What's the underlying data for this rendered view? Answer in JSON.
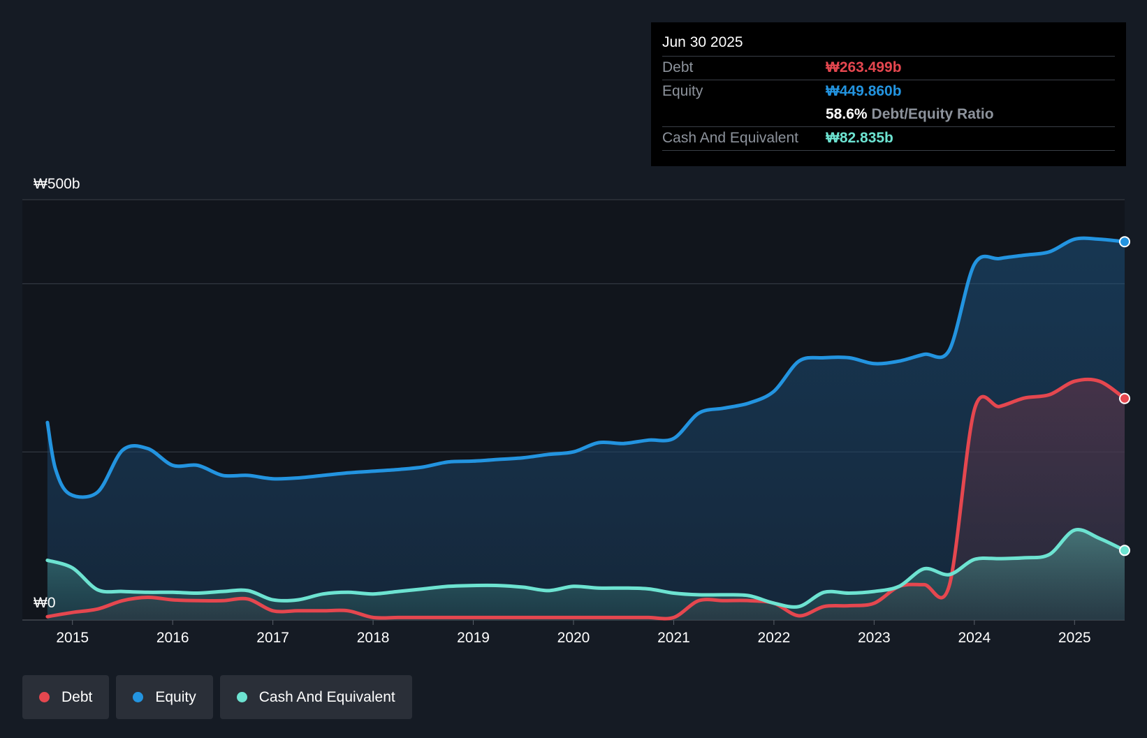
{
  "colors": {
    "debt": "#e5474f",
    "equity": "#2394e0",
    "cash": "#6de3d1",
    "background": "#151b24",
    "plot_background": "#11151c"
  },
  "tooltip": {
    "date": "Jun 30 2025",
    "debt_label": "Debt",
    "debt_value": "₩263.499b",
    "equity_label": "Equity",
    "equity_value": "₩449.860b",
    "ratio_value": "58.6%",
    "ratio_label": "Debt/Equity Ratio",
    "cash_label": "Cash And Equivalent",
    "cash_value": "₩82.835b"
  },
  "legend": [
    {
      "key": "debt",
      "label": "Debt"
    },
    {
      "key": "equity",
      "label": "Equity"
    },
    {
      "key": "cash",
      "label": "Cash And Equivalent"
    }
  ],
  "chart_data": {
    "type": "area",
    "title": "",
    "xlabel": "",
    "ylabel": "",
    "y_top_label": "₩500b",
    "y_bottom_label": "₩0",
    "ylim": [
      0,
      500
    ],
    "xlim": [
      2014.5,
      2025.5
    ],
    "x_ticks": [
      "2015",
      "2016",
      "2017",
      "2018",
      "2019",
      "2020",
      "2021",
      "2022",
      "2023",
      "2024",
      "2025"
    ],
    "x_tick_values": [
      2015,
      2016,
      2017,
      2018,
      2019,
      2020,
      2021,
      2022,
      2023,
      2024,
      2025
    ],
    "gridlines": [
      0,
      200,
      400,
      500
    ],
    "series": [
      {
        "name": "Equity",
        "key": "equity",
        "points": [
          [
            2014.75,
            235
          ],
          [
            2014.83,
            180
          ],
          [
            2014.97,
            150
          ],
          [
            2015.25,
            152
          ],
          [
            2015.5,
            202
          ],
          [
            2015.75,
            204
          ],
          [
            2016.0,
            184
          ],
          [
            2016.25,
            184
          ],
          [
            2016.5,
            172
          ],
          [
            2016.75,
            172
          ],
          [
            2017.0,
            168
          ],
          [
            2017.25,
            169
          ],
          [
            2017.5,
            172
          ],
          [
            2017.75,
            175
          ],
          [
            2018.0,
            177
          ],
          [
            2018.25,
            179
          ],
          [
            2018.5,
            182
          ],
          [
            2018.75,
            188
          ],
          [
            2019.0,
            189
          ],
          [
            2019.25,
            191
          ],
          [
            2019.5,
            193
          ],
          [
            2019.75,
            197
          ],
          [
            2020.0,
            200
          ],
          [
            2020.25,
            211
          ],
          [
            2020.5,
            210
          ],
          [
            2020.75,
            214
          ],
          [
            2021.0,
            216
          ],
          [
            2021.25,
            246
          ],
          [
            2021.5,
            252
          ],
          [
            2021.75,
            258
          ],
          [
            2022.0,
            272
          ],
          [
            2022.25,
            308
          ],
          [
            2022.5,
            312
          ],
          [
            2022.75,
            312
          ],
          [
            2023.0,
            305
          ],
          [
            2023.25,
            308
          ],
          [
            2023.5,
            316
          ],
          [
            2023.75,
            321
          ],
          [
            2024.0,
            423
          ],
          [
            2024.25,
            430
          ],
          [
            2024.5,
            434
          ],
          [
            2024.75,
            438
          ],
          [
            2025.0,
            453
          ],
          [
            2025.25,
            453
          ],
          [
            2025.5,
            450
          ]
        ]
      },
      {
        "name": "Debt",
        "key": "debt",
        "points": [
          [
            2014.75,
            4
          ],
          [
            2015.0,
            9
          ],
          [
            2015.25,
            13
          ],
          [
            2015.5,
            23
          ],
          [
            2015.75,
            27
          ],
          [
            2016.0,
            24
          ],
          [
            2016.25,
            23
          ],
          [
            2016.5,
            23
          ],
          [
            2016.75,
            25
          ],
          [
            2017.0,
            11
          ],
          [
            2017.25,
            11
          ],
          [
            2017.5,
            11
          ],
          [
            2017.75,
            11
          ],
          [
            2018.0,
            3
          ],
          [
            2018.25,
            3
          ],
          [
            2018.5,
            3
          ],
          [
            2018.75,
            3
          ],
          [
            2019.0,
            3
          ],
          [
            2019.25,
            3
          ],
          [
            2019.5,
            3
          ],
          [
            2019.75,
            3
          ],
          [
            2020.0,
            3
          ],
          [
            2020.25,
            3
          ],
          [
            2020.5,
            3
          ],
          [
            2020.75,
            3
          ],
          [
            2021.0,
            3
          ],
          [
            2021.25,
            23
          ],
          [
            2021.5,
            23
          ],
          [
            2021.75,
            23
          ],
          [
            2022.0,
            20
          ],
          [
            2022.25,
            5
          ],
          [
            2022.5,
            16
          ],
          [
            2022.75,
            17
          ],
          [
            2023.0,
            20
          ],
          [
            2023.25,
            40
          ],
          [
            2023.5,
            42
          ],
          [
            2023.75,
            41
          ],
          [
            2024.0,
            250
          ],
          [
            2024.25,
            254
          ],
          [
            2024.5,
            264
          ],
          [
            2024.75,
            268
          ],
          [
            2025.0,
            284
          ],
          [
            2025.25,
            284
          ],
          [
            2025.5,
            263.5
          ]
        ]
      },
      {
        "name": "Cash And Equivalent",
        "key": "cash",
        "points": [
          [
            2014.75,
            71
          ],
          [
            2015.0,
            62
          ],
          [
            2015.25,
            36
          ],
          [
            2015.5,
            34
          ],
          [
            2015.75,
            33
          ],
          [
            2016.0,
            33
          ],
          [
            2016.25,
            32
          ],
          [
            2016.5,
            34
          ],
          [
            2016.75,
            35
          ],
          [
            2017.0,
            24
          ],
          [
            2017.25,
            24
          ],
          [
            2017.5,
            31
          ],
          [
            2017.75,
            33
          ],
          [
            2018.0,
            31
          ],
          [
            2018.25,
            34
          ],
          [
            2018.5,
            37
          ],
          [
            2018.75,
            40
          ],
          [
            2019.0,
            41
          ],
          [
            2019.25,
            41
          ],
          [
            2019.5,
            39
          ],
          [
            2019.75,
            35
          ],
          [
            2020.0,
            40
          ],
          [
            2020.25,
            38
          ],
          [
            2020.5,
            38
          ],
          [
            2020.75,
            37
          ],
          [
            2021.0,
            32
          ],
          [
            2021.25,
            30
          ],
          [
            2021.5,
            30
          ],
          [
            2021.75,
            29
          ],
          [
            2022.0,
            20
          ],
          [
            2022.25,
            16
          ],
          [
            2022.5,
            33
          ],
          [
            2022.75,
            32
          ],
          [
            2023.0,
            34
          ],
          [
            2023.25,
            40
          ],
          [
            2023.5,
            61
          ],
          [
            2023.75,
            54
          ],
          [
            2024.0,
            72
          ],
          [
            2024.25,
            73
          ],
          [
            2024.5,
            74
          ],
          [
            2024.75,
            78
          ],
          [
            2025.0,
            107
          ],
          [
            2025.25,
            97
          ],
          [
            2025.5,
            82.8
          ]
        ]
      }
    ]
  }
}
